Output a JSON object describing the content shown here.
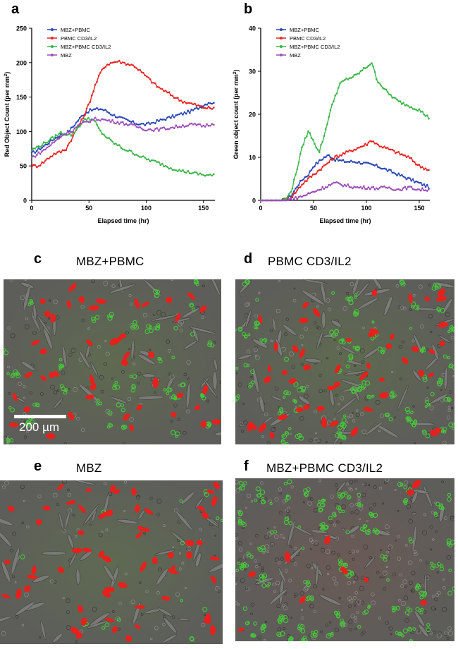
{
  "panels": {
    "a": "a",
    "b": "b",
    "c": "c",
    "d": "d",
    "e": "e",
    "f": "f"
  },
  "image_titles": {
    "c": "MBZ+PBMC",
    "d": "PBMC CD3/IL2",
    "e": "MBZ",
    "f": "MBZ+PBMC CD3/IL2"
  },
  "scale_bar": {
    "label": "200 µm"
  },
  "colors": {
    "mbz_pbmc": "#2a47b3",
    "pbmc_cd3": "#e52421",
    "mbz_pbmc_cd3": "#3cb54a",
    "mbz": "#9b4fb8",
    "cell_red": "#e8201c",
    "cell_green": "#46c83a",
    "micro_bg": "#5d5d5a"
  },
  "chart_data": [
    {
      "type": "line",
      "panel": "a",
      "xlabel": "Elapsed time (hr)",
      "ylabel": "Red Object Count (per mm2)",
      "ylabel_prefix": "Red Object Count (per mm",
      "ylabel_sup": "2",
      "ylabel_suffix": ")",
      "xlim": [
        0,
        160
      ],
      "ylim": [
        0,
        250
      ],
      "xticks": [
        0,
        50,
        100,
        150
      ],
      "yticks": [
        0,
        50,
        100,
        150,
        200,
        250
      ],
      "legend_position": "top-left",
      "series": [
        {
          "name": "MBZ+PBMC",
          "color": "#2a47b3",
          "x": [
            0,
            10,
            20,
            25,
            30,
            35,
            40,
            45,
            50,
            55,
            60,
            65,
            70,
            80,
            90,
            100,
            110,
            120,
            130,
            140,
            150,
            155,
            160
          ],
          "values": [
            68,
            78,
            90,
            95,
            97,
            105,
            115,
            125,
            130,
            132,
            133,
            130,
            125,
            118,
            112,
            110,
            115,
            120,
            125,
            130,
            138,
            143,
            140
          ]
        },
        {
          "name": "PBMC CD3/IL2",
          "color": "#e52421",
          "x": [
            0,
            5,
            10,
            15,
            20,
            25,
            30,
            35,
            40,
            45,
            50,
            55,
            60,
            65,
            70,
            75,
            80,
            90,
            100,
            110,
            120,
            130,
            140,
            150,
            160
          ],
          "values": [
            50,
            50,
            55,
            62,
            68,
            70,
            75,
            90,
            105,
            120,
            140,
            165,
            185,
            197,
            200,
            202,
            200,
            195,
            180,
            165,
            155,
            145,
            140,
            135,
            133
          ]
        },
        {
          "name": "MBZ+PBMC CD3/IL2",
          "color": "#3cb54a",
          "x": [
            0,
            10,
            20,
            25,
            30,
            35,
            40,
            45,
            50,
            55,
            60,
            70,
            80,
            90,
            100,
            110,
            120,
            130,
            140,
            150,
            160
          ],
          "values": [
            73,
            82,
            92,
            98,
            97,
            95,
            105,
            115,
            120,
            115,
            100,
            85,
            75,
            68,
            60,
            55,
            48,
            43,
            40,
            37,
            36
          ]
        },
        {
          "name": "MBZ",
          "color": "#9b4fb8",
          "x": [
            0,
            10,
            20,
            25,
            30,
            35,
            40,
            45,
            50,
            55,
            60,
            70,
            80,
            90,
            100,
            110,
            120,
            130,
            140,
            150,
            160
          ],
          "values": [
            62,
            72,
            85,
            92,
            98,
            100,
            108,
            112,
            115,
            118,
            118,
            115,
            112,
            108,
            103,
            103,
            105,
            108,
            110,
            108,
            112
          ]
        }
      ]
    },
    {
      "type": "line",
      "panel": "b",
      "xlabel": "Elapsed time (hr)",
      "ylabel": "Green object count (per mm2)",
      "ylabel_prefix": "Green object count (per mm",
      "ylabel_sup": "2",
      "ylabel_suffix": ")",
      "xlim": [
        0,
        160
      ],
      "ylim": [
        0,
        40
      ],
      "xticks": [
        0,
        50,
        100,
        150
      ],
      "yticks": [
        0,
        10,
        20,
        30,
        40
      ],
      "legend_position": "top-left",
      "series": [
        {
          "name": "MBZ+PBMC",
          "color": "#2a47b3",
          "x": [
            0,
            10,
            20,
            25,
            30,
            35,
            40,
            45,
            50,
            55,
            60,
            65,
            70,
            80,
            90,
            100,
            110,
            120,
            130,
            140,
            150,
            160
          ],
          "values": [
            0,
            0,
            0,
            0.3,
            1.5,
            3.5,
            5,
            6,
            8,
            9,
            10,
            10.5,
            9.5,
            9,
            9,
            8.5,
            8,
            7,
            6,
            5,
            4,
            3
          ]
        },
        {
          "name": "PBMC CD3/IL2",
          "color": "#e52421",
          "x": [
            0,
            10,
            20,
            25,
            30,
            35,
            40,
            45,
            50,
            55,
            60,
            65,
            70,
            80,
            90,
            100,
            105,
            110,
            120,
            130,
            140,
            150,
            160
          ],
          "values": [
            0,
            0,
            0,
            0.2,
            1,
            2.5,
            4,
            5,
            6,
            7,
            8,
            9,
            10,
            11,
            12,
            13,
            14,
            13,
            12,
            11,
            10,
            8,
            7
          ]
        },
        {
          "name": "MBZ+PBMC CD3/IL2",
          "color": "#3cb54a",
          "x": [
            0,
            10,
            20,
            25,
            30,
            35,
            40,
            45,
            50,
            55,
            60,
            65,
            70,
            75,
            80,
            90,
            100,
            105,
            110,
            120,
            130,
            140,
            150,
            160
          ],
          "values": [
            0,
            0,
            0,
            0.5,
            3,
            8,
            13,
            16,
            14,
            11,
            15,
            20,
            24,
            27,
            28,
            29,
            31,
            32,
            28,
            25,
            23,
            22,
            21,
            19
          ]
        },
        {
          "name": "MBZ",
          "color": "#9b4fb8",
          "x": [
            0,
            10,
            20,
            25,
            30,
            40,
            50,
            60,
            70,
            80,
            90,
            100,
            110,
            120,
            130,
            140,
            150,
            160
          ],
          "values": [
            0,
            0,
            0,
            0,
            0.3,
            1,
            2,
            3,
            4,
            3.5,
            3,
            3,
            2.8,
            3,
            2.5,
            3,
            2.5,
            2.5
          ]
        }
      ]
    }
  ]
}
